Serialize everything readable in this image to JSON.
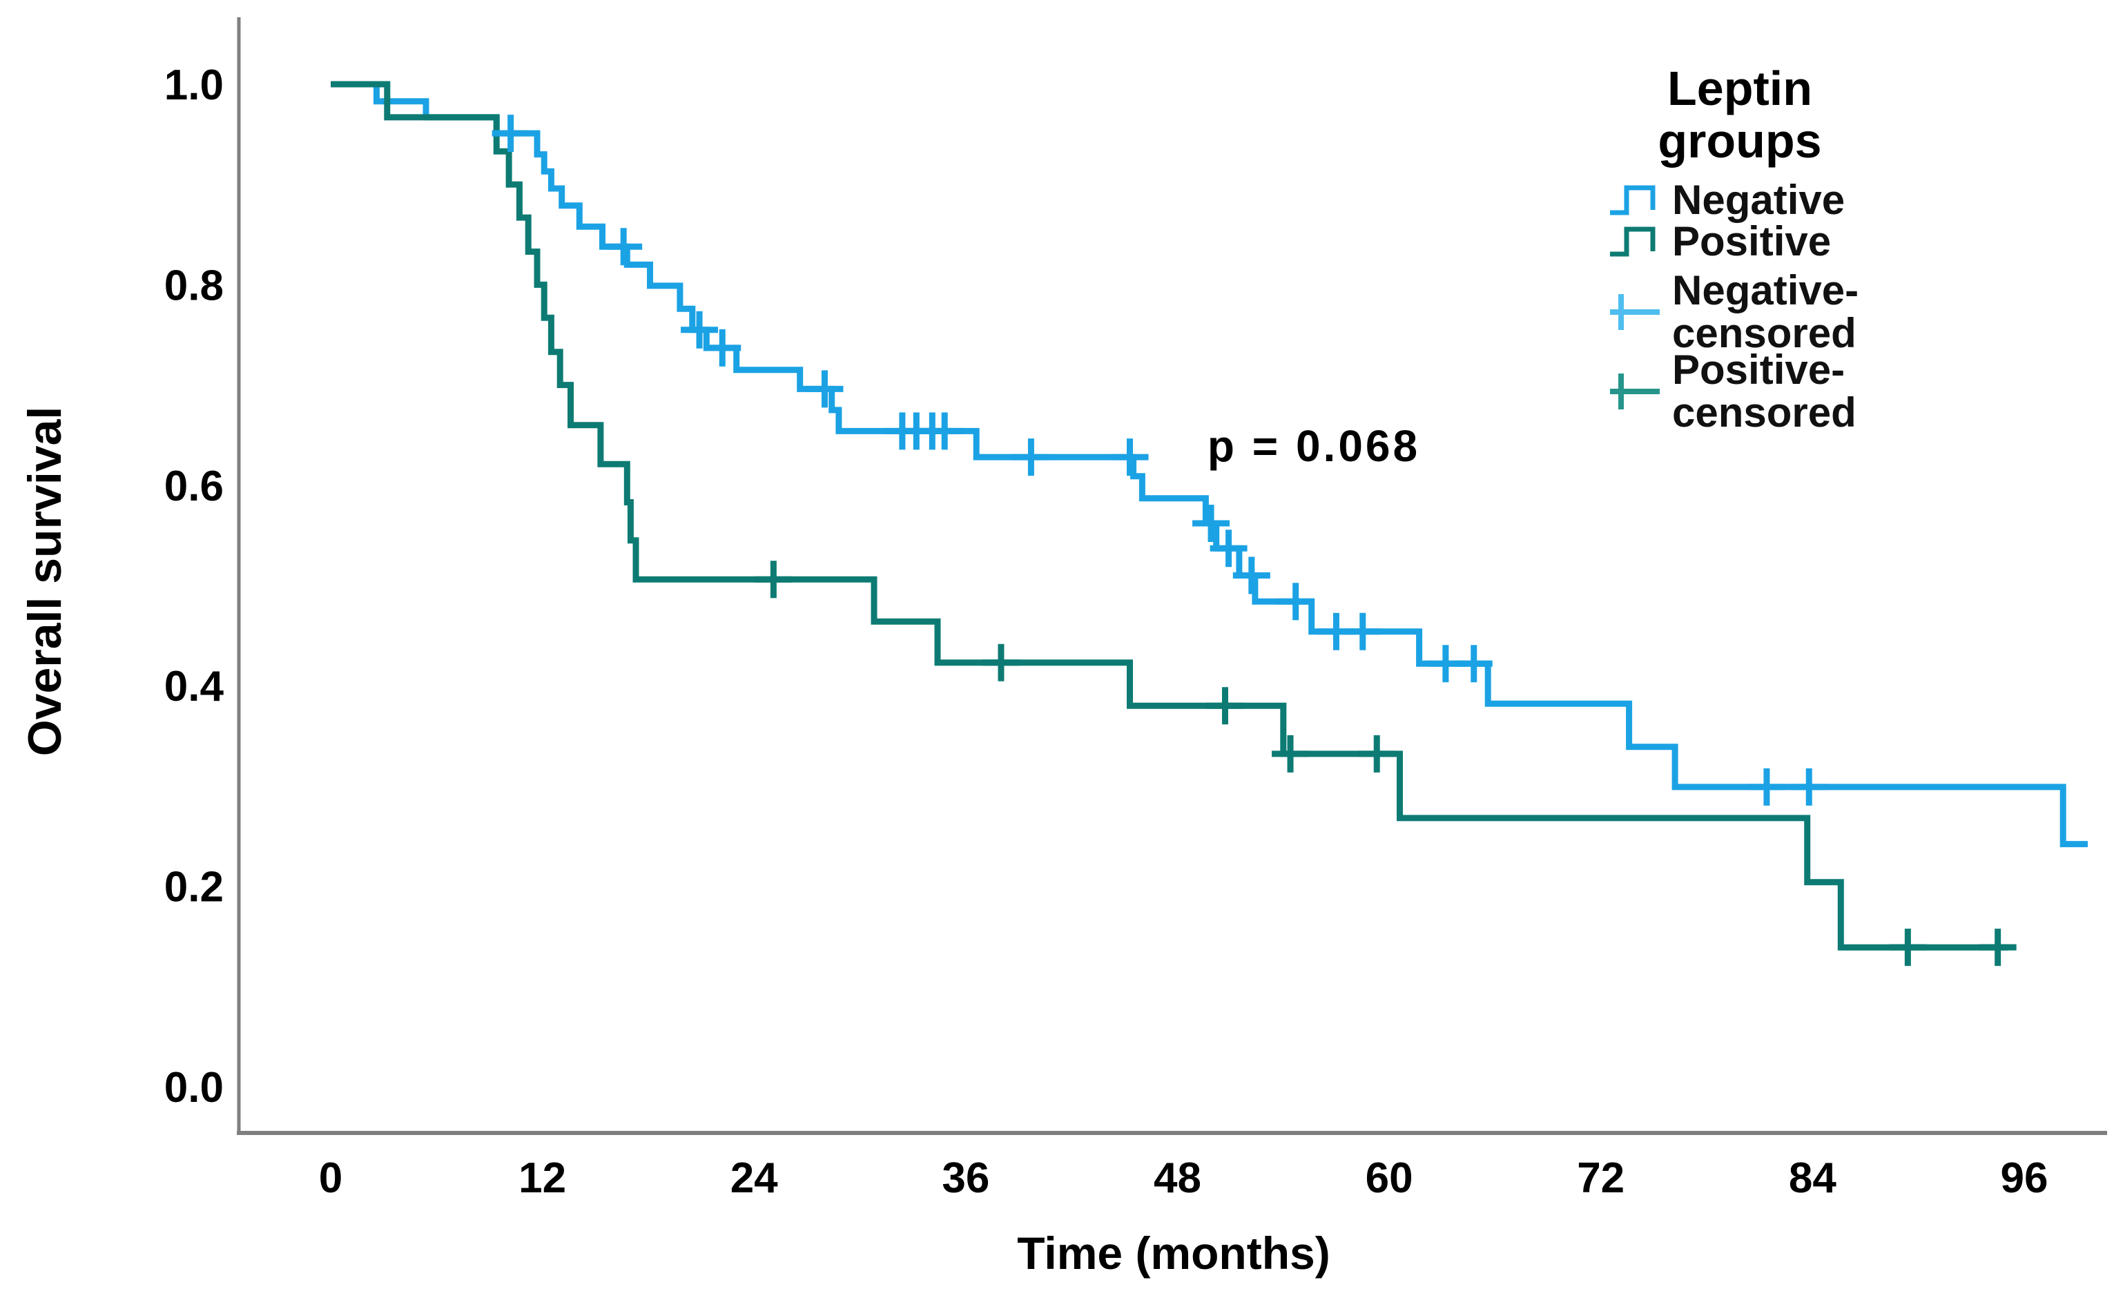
{
  "figure": {
    "y_axis_title": "Overall survival",
    "x_axis_title": "Time (months)",
    "annotation_text": "p = 0.068"
  },
  "legend": {
    "title_line1": "Leptin",
    "title_line2": "groups",
    "items": [
      {
        "label": "Negative",
        "color": "#1BA2E4"
      },
      {
        "label": "Positive",
        "color": "#0D7B73"
      },
      {
        "label_line1": "Negative-",
        "label_line2": "censored",
        "color": "#4FBEEF"
      },
      {
        "label_line1": "Positive-",
        "label_line2": "censored",
        "color": "#27958B"
      }
    ]
  },
  "chart_data": {
    "type": "line",
    "subtype": "kaplan-meier-step",
    "title": "",
    "xlabel": "Time (months)",
    "ylabel": "Overall survival",
    "xlim": [
      0,
      102
    ],
    "ylim": [
      0.0,
      1.0
    ],
    "x_ticks": [
      0,
      12,
      24,
      36,
      48,
      60,
      72,
      84,
      96
    ],
    "y_ticks": [
      0.0,
      0.2,
      0.4,
      0.6,
      0.8,
      1.0
    ],
    "grid": false,
    "legend_position": "top-right",
    "annotation": {
      "text": "p = 0.068",
      "x_months": 55.7,
      "y_survival": 0.64
    },
    "series": [
      {
        "name": "Negative",
        "group": "Leptin negative",
        "color": "#1BA2E4",
        "censor_color": "#1BA2E4",
        "end_t": 99.6,
        "steps": [
          [
            0,
            1.0
          ],
          [
            2.6,
            0.983
          ],
          [
            5.4,
            0.967
          ],
          [
            9.4,
            0.951
          ],
          [
            11.7,
            0.93
          ],
          [
            12.1,
            0.913
          ],
          [
            12.5,
            0.896
          ],
          [
            13.1,
            0.879
          ],
          [
            14.1,
            0.858
          ],
          [
            15.4,
            0.838
          ],
          [
            16.8,
            0.82
          ],
          [
            18.1,
            0.799
          ],
          [
            19.8,
            0.776
          ],
          [
            20.5,
            0.755
          ],
          [
            21.3,
            0.737
          ],
          [
            23.0,
            0.715
          ],
          [
            26.6,
            0.696
          ],
          [
            28.4,
            0.675
          ],
          [
            28.8,
            0.654
          ],
          [
            36.6,
            0.628
          ],
          [
            45.5,
            0.609
          ],
          [
            46.0,
            0.587
          ],
          [
            49.6,
            0.562
          ],
          [
            50.2,
            0.537
          ],
          [
            51.5,
            0.51
          ],
          [
            52.4,
            0.484
          ],
          [
            55.6,
            0.454
          ],
          [
            61.7,
            0.422
          ],
          [
            65.6,
            0.382
          ],
          [
            73.6,
            0.339
          ],
          [
            76.2,
            0.299
          ],
          [
            98.2,
            0.242
          ]
        ],
        "censors": [
          [
            10.2,
            0.951
          ],
          [
            16.6,
            0.838
          ],
          [
            20.9,
            0.755
          ],
          [
            22.2,
            0.737
          ],
          [
            28.0,
            0.696
          ],
          [
            32.4,
            0.654
          ],
          [
            33.2,
            0.654
          ],
          [
            34.1,
            0.654
          ],
          [
            34.8,
            0.654
          ],
          [
            39.7,
            0.628
          ],
          [
            45.3,
            0.628
          ],
          [
            49.9,
            0.562
          ],
          [
            50.9,
            0.537
          ],
          [
            52.2,
            0.51
          ],
          [
            54.7,
            0.484
          ],
          [
            57.0,
            0.454
          ],
          [
            58.5,
            0.454
          ],
          [
            63.2,
            0.422
          ],
          [
            64.8,
            0.422
          ],
          [
            81.4,
            0.299
          ],
          [
            83.8,
            0.299
          ]
        ]
      },
      {
        "name": "Positive",
        "group": "Leptin positive",
        "color": "#0D7B73",
        "censor_color": "#0D7B73",
        "end_t": 95.1,
        "steps": [
          [
            0,
            1.0
          ],
          [
            3.2,
            0.967
          ],
          [
            9.4,
            0.933
          ],
          [
            10.1,
            0.9
          ],
          [
            10.7,
            0.867
          ],
          [
            11.2,
            0.833
          ],
          [
            11.7,
            0.8
          ],
          [
            12.1,
            0.767
          ],
          [
            12.5,
            0.733
          ],
          [
            13.0,
            0.7
          ],
          [
            13.6,
            0.66
          ],
          [
            15.3,
            0.621
          ],
          [
            16.8,
            0.583
          ],
          [
            17.0,
            0.545
          ],
          [
            17.3,
            0.506
          ],
          [
            30.8,
            0.464
          ],
          [
            34.4,
            0.423
          ],
          [
            45.3,
            0.38
          ],
          [
            54.0,
            0.332
          ],
          [
            60.6,
            0.268
          ],
          [
            83.7,
            0.204
          ],
          [
            85.6,
            0.139
          ]
        ],
        "censors": [
          [
            25.1,
            0.506
          ],
          [
            38.0,
            0.423
          ],
          [
            50.7,
            0.38
          ],
          [
            54.4,
            0.332
          ],
          [
            59.3,
            0.332
          ],
          [
            89.4,
            0.139
          ],
          [
            94.5,
            0.139
          ]
        ]
      }
    ]
  }
}
